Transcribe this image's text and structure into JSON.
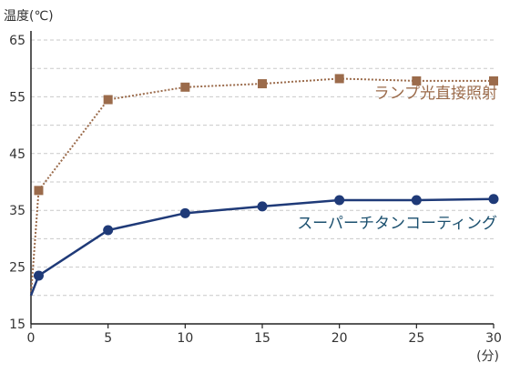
{
  "chart_data": {
    "type": "line",
    "ylabel": "温度(℃)",
    "xlabel_unit": "(分)",
    "xlim": [
      0,
      30
    ],
    "ylim": [
      15,
      65
    ],
    "xticks": [
      0,
      5,
      10,
      15,
      20,
      25,
      30
    ],
    "yticks": [
      15,
      25,
      35,
      45,
      55,
      65
    ],
    "grid": "horizontal dashed, every 5℃",
    "series": [
      {
        "name": "ランプ光直接照射",
        "color": "#9b6b4b",
        "marker": "square",
        "line_style": "dotted",
        "x": [
          0,
          0.5,
          5,
          10,
          15,
          20,
          25,
          30
        ],
        "y": [
          20,
          38.5,
          54.5,
          56.7,
          57.3,
          58.2,
          57.8,
          57.8
        ]
      },
      {
        "name": "スーパーチタンコーティング",
        "color": "#1f3a78",
        "marker": "circle",
        "line_style": "solid",
        "x": [
          0,
          0.5,
          5,
          10,
          15,
          20,
          25,
          30
        ],
        "y": [
          20,
          23.5,
          31.5,
          34.5,
          35.7,
          36.8,
          36.8,
          37
        ]
      }
    ]
  }
}
